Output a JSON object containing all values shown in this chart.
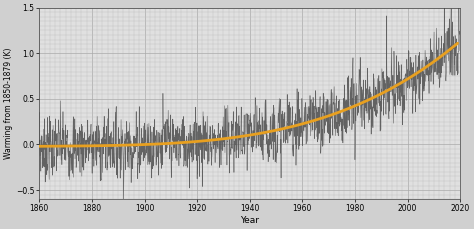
{
  "title": "",
  "xlabel": "Year",
  "ylabel": "Warming from 1850-1879 (K)",
  "xlim": [
    1860,
    2020
  ],
  "ylim": [
    -0.6,
    1.5
  ],
  "yticks": [
    -0.5,
    0.0,
    0.5,
    1.0,
    1.5
  ],
  "xticks": [
    1860,
    1880,
    1900,
    1920,
    1940,
    1960,
    1980,
    2000,
    2020
  ],
  "noise_color": "#555555",
  "trend_color": "#E8A020",
  "plot_bg_color": "#e8e8e8",
  "fig_bg_color": "#d8d8d8",
  "noise_linewidth": 0.4,
  "trend_linewidth": 2.0,
  "grid_color": "#bbbbbb",
  "grid_major_color": "#999999",
  "minor_grid_color": "#cccccc"
}
